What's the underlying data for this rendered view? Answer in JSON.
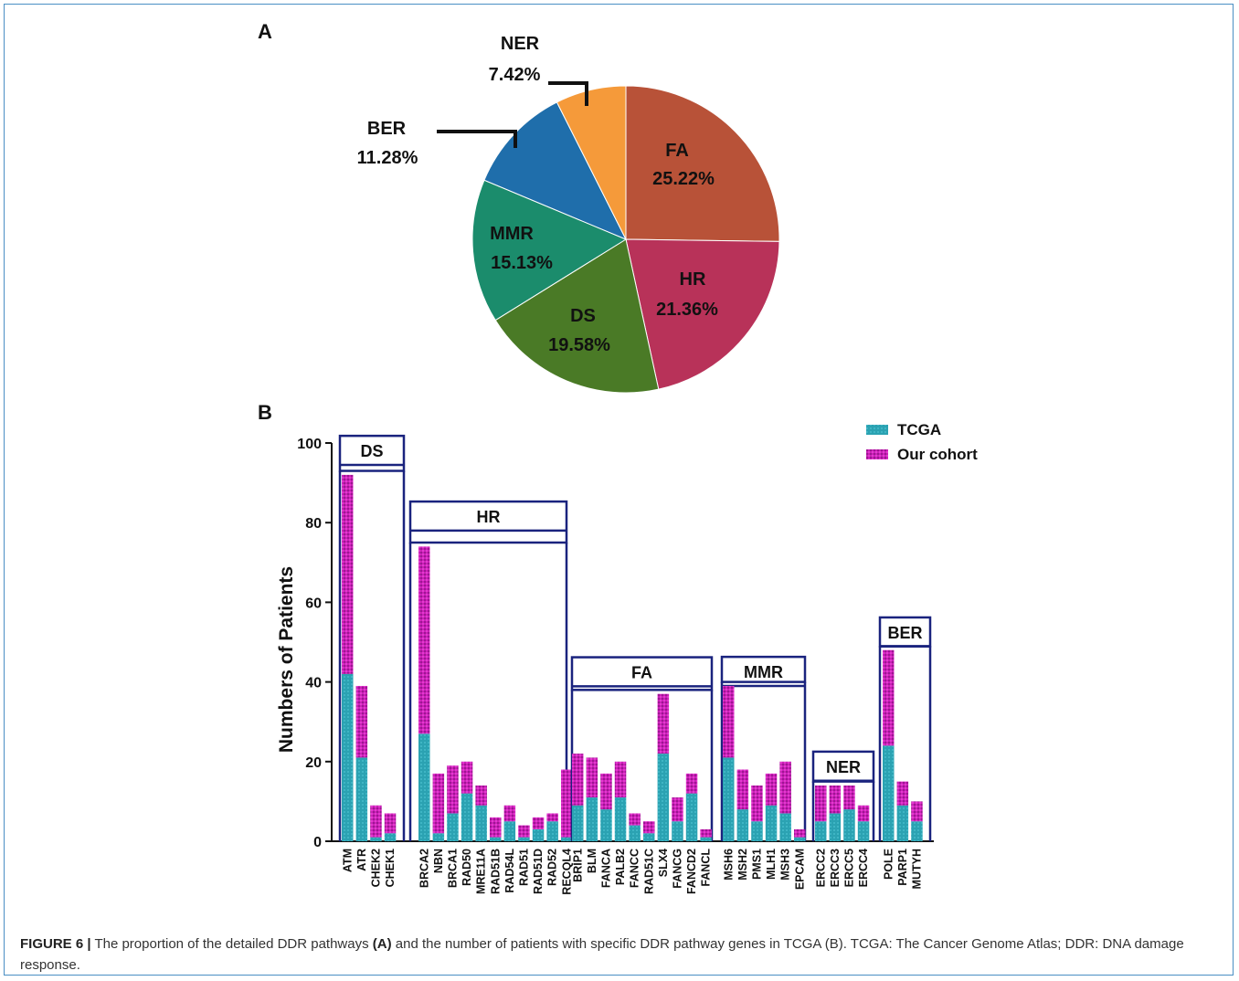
{
  "colors": {
    "tcga": "#2ba2b2",
    "our_cohort": "#cc1fb8",
    "box": "#1a237e",
    "pie": {
      "FA": "#b85238",
      "HR": "#b83259",
      "DS": "#4a7a26",
      "MMR": "#1b8c6c",
      "BER": "#1f6eab",
      "NER": "#f59a3a"
    },
    "frame": "#4a8fc4"
  },
  "chart_data": [
    {
      "type": "pie",
      "panel_label": "A",
      "slices": [
        {
          "label": "FA",
          "pct_label": "25.22%",
          "value": 25.22
        },
        {
          "label": "HR",
          "pct_label": "21.36%",
          "value": 21.36
        },
        {
          "label": "DS",
          "pct_label": "19.58%",
          "value": 19.58
        },
        {
          "label": "MMR",
          "pct_label": "15.13%",
          "value": 15.13
        },
        {
          "label": "BER",
          "pct_label": "11.28%",
          "value": 11.28
        },
        {
          "label": "NER",
          "pct_label": "7.42%",
          "value": 7.42
        }
      ]
    },
    {
      "type": "bar",
      "stacked": true,
      "panel_label": "B",
      "ylabel": "Numbers of Patients",
      "ylim": [
        0,
        100
      ],
      "yticks": [
        0,
        20,
        40,
        60,
        80,
        100
      ],
      "legend": {
        "placement": "top-right",
        "entries": [
          "TCGA",
          "Our cohort"
        ]
      },
      "groups": [
        {
          "name": "DS",
          "genes": [
            "ATM",
            "ATR",
            "CHEK2",
            "CHEK1"
          ],
          "tcga": [
            42,
            21,
            1,
            2
          ],
          "total": [
            92,
            39,
            9,
            7
          ]
        },
        {
          "name": "HR",
          "genes": [
            "BRCA2",
            "NBN",
            "BRCA1",
            "RAD50",
            "MRE11A",
            "RAD51B",
            "RAD54L",
            "RAD51",
            "RAD51D",
            "RAD52",
            "RECQL4"
          ],
          "tcga": [
            27,
            2,
            7,
            12,
            9,
            1,
            5,
            1,
            3,
            5,
            1
          ],
          "total": [
            74,
            17,
            19,
            20,
            14,
            6,
            9,
            4,
            6,
            7,
            18
          ]
        },
        {
          "name": "FA",
          "genes": [
            "BRIP1",
            "BLM",
            "FANCA",
            "PALB2",
            "FANCC",
            "RAD51C",
            "SLX4",
            "FANCG",
            "FANCD2",
            "FANCL"
          ],
          "tcga": [
            9,
            11,
            8,
            11,
            4,
            2,
            22,
            5,
            12,
            1
          ],
          "total": [
            22,
            21,
            17,
            20,
            7,
            5,
            37,
            11,
            17,
            3
          ]
        },
        {
          "name": "MMR",
          "genes": [
            "MSH6",
            "MSH2",
            "PMS1",
            "MLH1",
            "MSH3",
            "EPCAM"
          ],
          "tcga": [
            21,
            8,
            5,
            9,
            7,
            1
          ],
          "total": [
            39,
            18,
            14,
            17,
            20,
            3
          ]
        },
        {
          "name": "NER",
          "genes": [
            "ERCC2",
            "ERCC3",
            "ERCC5",
            "ERCC4"
          ],
          "tcga": [
            5,
            7,
            8,
            5
          ],
          "total": [
            14,
            14,
            14,
            9
          ]
        },
        {
          "name": "BER",
          "genes": [
            "POLE",
            "PARP1",
            "MUTYH"
          ],
          "tcga": [
            24,
            9,
            5
          ],
          "total": [
            48,
            15,
            10
          ]
        }
      ]
    }
  ],
  "caption": {
    "figure_label": "FIGURE 6 |",
    "text_1": " The proportion of the detailed DDR pathways ",
    "bold_a": "(A)",
    "text_2": " and the number of patients with specific DDR pathway genes in TCGA (B). TCGA: The Cancer Genome Atlas; DDR: DNA damage response."
  }
}
